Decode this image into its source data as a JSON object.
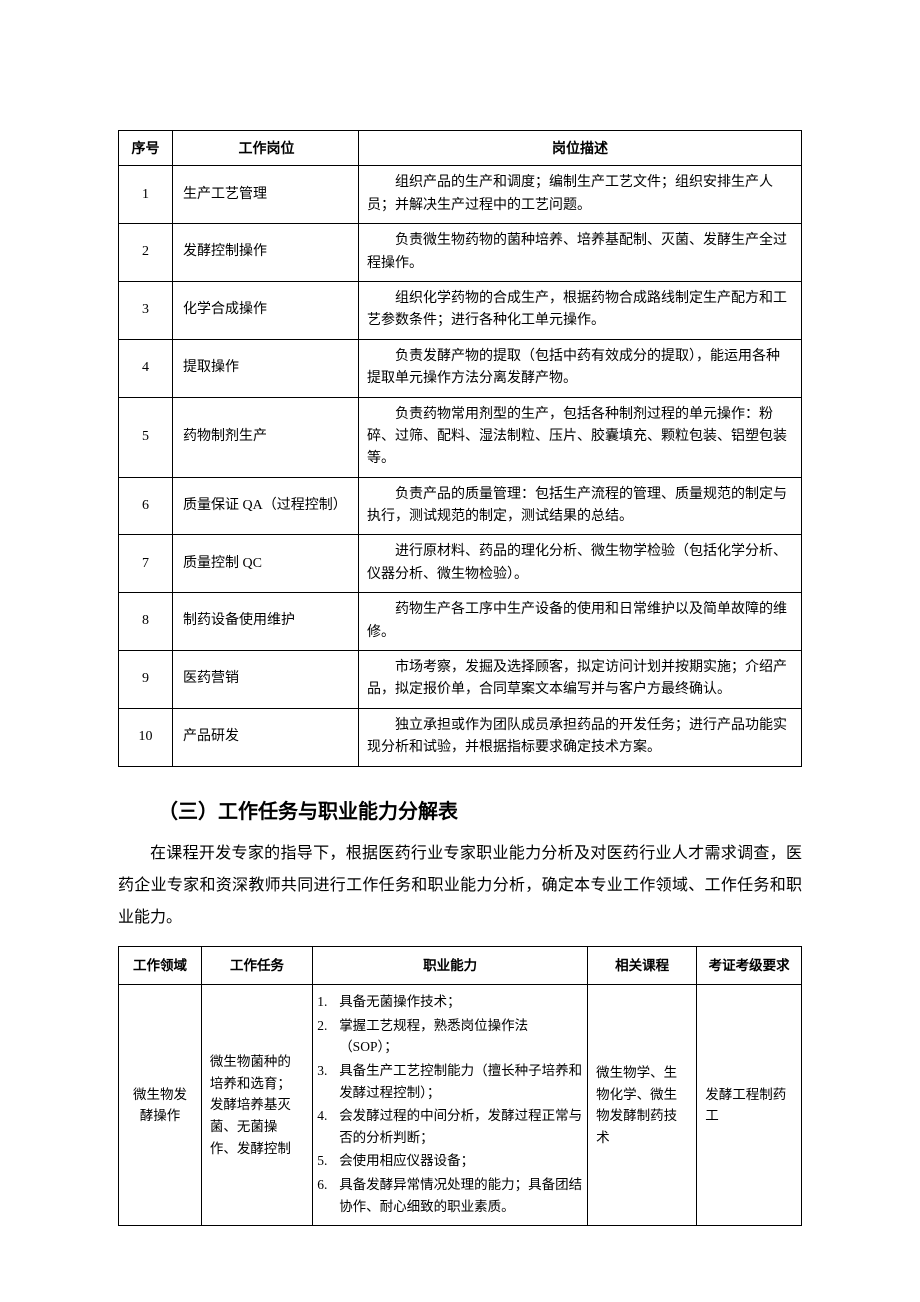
{
  "table1": {
    "headers": {
      "c1": "序号",
      "c2": "工作岗位",
      "c3": "岗位描述"
    },
    "rows": [
      {
        "n": "1",
        "job": "生产工艺管理",
        "desc": "组织产品的生产和调度；编制生产工艺文件；组织安排生产人员；并解决生产过程中的工艺问题。"
      },
      {
        "n": "2",
        "job": "发酵控制操作",
        "desc": "负责微生物药物的菌种培养、培养基配制、灭菌、发酵生产全过程操作。"
      },
      {
        "n": "3",
        "job": "化学合成操作",
        "desc": "组织化学药物的合成生产，根据药物合成路线制定生产配方和工艺参数条件；进行各种化工单元操作。"
      },
      {
        "n": "4",
        "job": "提取操作",
        "desc": "负责发酵产物的提取（包括中药有效成分的提取），能运用各种提取单元操作方法分离发酵产物。"
      },
      {
        "n": "5",
        "job": "药物制剂生产",
        "desc": "负责药物常用剂型的生产，包括各种制剂过程的单元操作：粉碎、过筛、配料、湿法制粒、压片、胶囊填充、颗粒包装、铝塑包装等。"
      },
      {
        "n": "6",
        "job": "质量保证 QA（过程控制）",
        "desc": "负责产品的质量管理：包括生产流程的管理、质量规范的制定与执行，测试规范的制定，测试结果的总结。"
      },
      {
        "n": "7",
        "job": "质量控制 QC",
        "desc": "进行原材料、药品的理化分析、微生物学检验（包括化学分析、仪器分析、微生物检验）。"
      },
      {
        "n": "8",
        "job": "制药设备使用维护",
        "desc": "药物生产各工序中生产设备的使用和日常维护以及简单故障的维修。"
      },
      {
        "n": "9",
        "job": "医药营销",
        "desc": "市场考察，发掘及选择顾客，拟定访问计划并按期实施；介绍产品，拟定报价单，合同草案文本编写并与客户方最终确认。"
      },
      {
        "n": "10",
        "job": "产品研发",
        "desc": "独立承担或作为团队成员承担药品的开发任务；进行产品功能实现分析和试验，并根据指标要求确定技术方案。"
      }
    ]
  },
  "section": {
    "title": "（三）工作任务与职业能力分解表",
    "para": "在课程开发专家的指导下，根据医药行业专家职业能力分析及对医药行业人才需求调查，医药企业专家和资深教师共同进行工作任务和职业能力分析，确定本专业工作领域、工作任务和职业能力。"
  },
  "table2": {
    "headers": {
      "c1": "工作领域",
      "c2": "工作任务",
      "c3": "职业能力",
      "c4": "相关课程",
      "c5": "考证考级要求"
    },
    "row1": {
      "domain": "微生物发酵操作",
      "task": "微生物菌种的培养和选育；发酵培养基灭菌、无菌操作、发酵控制",
      "skills": [
        {
          "n": "1.",
          "t": "具备无菌操作技术；"
        },
        {
          "n": "2.",
          "t": "掌握工艺规程，熟悉岗位操作法（SOP）；"
        },
        {
          "n": "3.",
          "t": "具备生产工艺控制能力（擅长种子培养和发酵过程控制）；"
        },
        {
          "n": "4.",
          "t": "会发酵过程的中间分析，发酵过程正常与否的分析判断；"
        },
        {
          "n": "5.",
          "t": "会使用相应仪器设备；"
        },
        {
          "n": "6.",
          "t": "具备发酵异常情况处理的能力；具备团结协作、耐心细致的职业素质。"
        }
      ],
      "course": "微生物学、生物化学、微生物发酵制药技术",
      "cert": "发酵工程制药工"
    }
  }
}
